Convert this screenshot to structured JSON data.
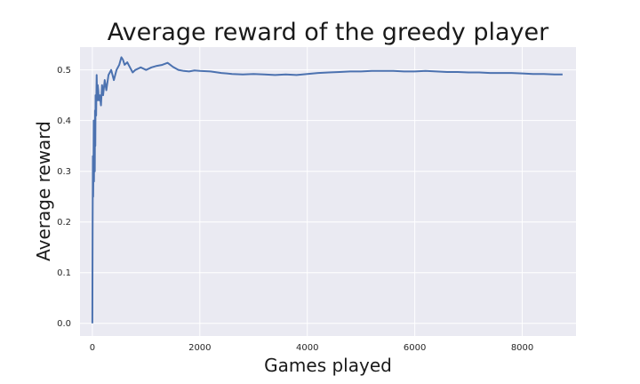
{
  "chart_data": {
    "type": "line",
    "title": "Average reward of the greedy player",
    "xlabel": "Games played",
    "ylabel": "Average reward",
    "xlim": [
      -230,
      9000
    ],
    "ylim": [
      -0.025,
      0.545
    ],
    "xticks": [
      0,
      2000,
      4000,
      6000,
      8000
    ],
    "xtick_labels": [
      "0",
      "2000",
      "4000",
      "6000",
      "8000"
    ],
    "yticks": [
      0.0,
      0.1,
      0.2,
      0.3,
      0.4,
      0.5
    ],
    "ytick_labels": [
      "0.0",
      "0.1",
      "0.2",
      "0.3",
      "0.4",
      "0.5"
    ],
    "grid": true,
    "background": "#eaeaf2",
    "grid_color": "#ffffff",
    "series": [
      {
        "color": "#4c72b0",
        "x": [
          0,
          5,
          10,
          15,
          20,
          25,
          30,
          35,
          40,
          45,
          50,
          55,
          60,
          70,
          80,
          90,
          100,
          110,
          120,
          140,
          160,
          180,
          200,
          230,
          260,
          300,
          350,
          400,
          450,
          500,
          540,
          570,
          600,
          650,
          700,
          750,
          800,
          900,
          1000,
          1100,
          1200,
          1300,
          1400,
          1450,
          1500,
          1600,
          1700,
          1800,
          1900,
          2000,
          2200,
          2400,
          2600,
          2800,
          3000,
          3200,
          3400,
          3600,
          3800,
          4000,
          4200,
          4400,
          4600,
          4800,
          5000,
          5200,
          5400,
          5600,
          5800,
          6000,
          6200,
          6400,
          6600,
          6800,
          7000,
          7200,
          7400,
          7600,
          7800,
          8000,
          8200,
          8400,
          8600,
          8750
        ],
        "values": [
          0.0,
          0.2,
          0.33,
          0.25,
          0.3,
          0.4,
          0.28,
          0.35,
          0.38,
          0.3,
          0.42,
          0.35,
          0.45,
          0.41,
          0.49,
          0.44,
          0.47,
          0.46,
          0.44,
          0.45,
          0.43,
          0.47,
          0.45,
          0.48,
          0.46,
          0.49,
          0.5,
          0.48,
          0.5,
          0.51,
          0.525,
          0.52,
          0.51,
          0.515,
          0.505,
          0.495,
          0.5,
          0.505,
          0.5,
          0.505,
          0.508,
          0.51,
          0.514,
          0.51,
          0.506,
          0.5,
          0.498,
          0.497,
          0.499,
          0.498,
          0.497,
          0.494,
          0.492,
          0.491,
          0.492,
          0.491,
          0.49,
          0.491,
          0.49,
          0.492,
          0.494,
          0.495,
          0.496,
          0.497,
          0.497,
          0.498,
          0.498,
          0.498,
          0.497,
          0.497,
          0.498,
          0.497,
          0.496,
          0.496,
          0.495,
          0.495,
          0.494,
          0.494,
          0.494,
          0.493,
          0.492,
          0.492,
          0.491,
          0.491
        ]
      }
    ]
  }
}
